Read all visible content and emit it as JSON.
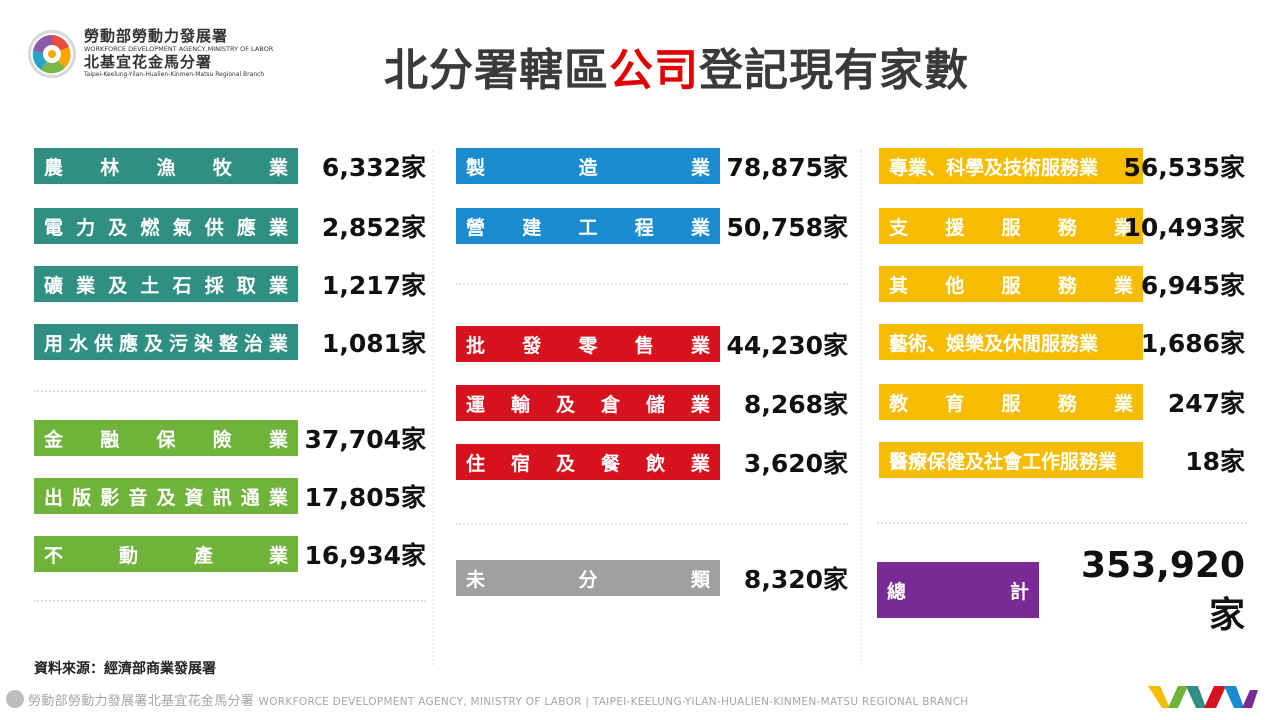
{
  "header": {
    "org_name_zh": "勞動部勞動力發展署",
    "org_name_en": "WORKFORCE DEVELOPMENT AGENCY,MINISTRY OF LABOR",
    "branch_name_zh": "北基宜花金馬分署",
    "branch_name_en": "Taipei-Keelung-Yilan-Hualien-Kinmen-Matsu Regional Branch",
    "title_before": "北分署轄區",
    "title_accent": "公司",
    "title_after": "登記現有家數"
  },
  "colors": {
    "teal": "#2f8f83",
    "green": "#6fb33a",
    "blue": "#1b8bd0",
    "red": "#d6121e",
    "gray": "#a0a0a0",
    "yellow": "#f5bc00",
    "purple": "#7a2a95",
    "title_accent": "#e00000"
  },
  "left": {
    "agriculture": {
      "label": [
        "農",
        "林",
        "漁",
        "牧",
        "業"
      ],
      "value": "6,332家"
    },
    "power": {
      "label": [
        "電",
        "力",
        "及",
        "燃",
        "氣",
        "供",
        "應",
        "業"
      ],
      "value": "2,852家"
    },
    "mining": {
      "label": [
        "礦",
        "業",
        "及",
        "土",
        "石",
        "採",
        "取",
        "業"
      ],
      "value": "1,217家"
    },
    "water": {
      "label": [
        "用",
        "水",
        "供",
        "應",
        "及",
        "污",
        "染",
        "整",
        "治",
        "業"
      ],
      "value": "1,081家"
    },
    "finance": {
      "label": [
        "金",
        "融",
        "保",
        "險",
        "業"
      ],
      "value": "37,704家"
    },
    "publishing": {
      "label": [
        "出",
        "版",
        "影",
        "音",
        "及",
        "資",
        "訊",
        "通",
        "業"
      ],
      "value": "17,805家"
    },
    "realestate": {
      "label": [
        "不",
        "動",
        "產",
        "業"
      ],
      "value": "16,934家"
    }
  },
  "middle": {
    "manufacturing": {
      "label": [
        "製",
        "造",
        "業"
      ],
      "value": "78,875家"
    },
    "construction": {
      "label": [
        "營",
        "建",
        "工",
        "程",
        "業"
      ],
      "value": "50,758家"
    },
    "wholesale": {
      "label": [
        "批",
        "發",
        "零",
        "售",
        "業"
      ],
      "value": "44,230家"
    },
    "transport": {
      "label": [
        "運",
        "輸",
        "及",
        "倉",
        "儲",
        "業"
      ],
      "value": "8,268家"
    },
    "accommodation": {
      "label": [
        "住",
        "宿",
        "及",
        "餐",
        "飲",
        "業"
      ],
      "value": "3,620家"
    },
    "unclassified": {
      "label": [
        "未",
        "分",
        "類"
      ],
      "value": "8,320家"
    }
  },
  "right": {
    "professional": {
      "label": "專業、科學及技術服務業",
      "value": "56,535家"
    },
    "support": {
      "label": [
        "支",
        "援",
        "服",
        "務",
        "業"
      ],
      "value": "10,493家"
    },
    "other": {
      "label": [
        "其",
        "他",
        "服",
        "務",
        "業"
      ],
      "value": "6,945家"
    },
    "arts": {
      "label": "藝術、娛樂及休閒服務業",
      "value": "1,686家"
    },
    "education": {
      "label": [
        "教",
        "育",
        "服",
        "務",
        "業"
      ],
      "value": "247家"
    },
    "health": {
      "label": "醫療保健及社會工作服務業",
      "value": "18家"
    }
  },
  "total": {
    "label": [
      "總",
      "計"
    ],
    "value": "353,920家"
  },
  "source": "資料來源：經濟部商業發展署",
  "footer": {
    "zh": "勞動部勞動力發展署北基宜花金馬分署",
    "en": "WORKFORCE DEVELOPMENT AGENCY, MINISTRY OF LABOR  |  TAIPEI-KEELUNG-YILAN-HUALIEN-KINMEN-MATSU REGIONAL BRANCH"
  }
}
